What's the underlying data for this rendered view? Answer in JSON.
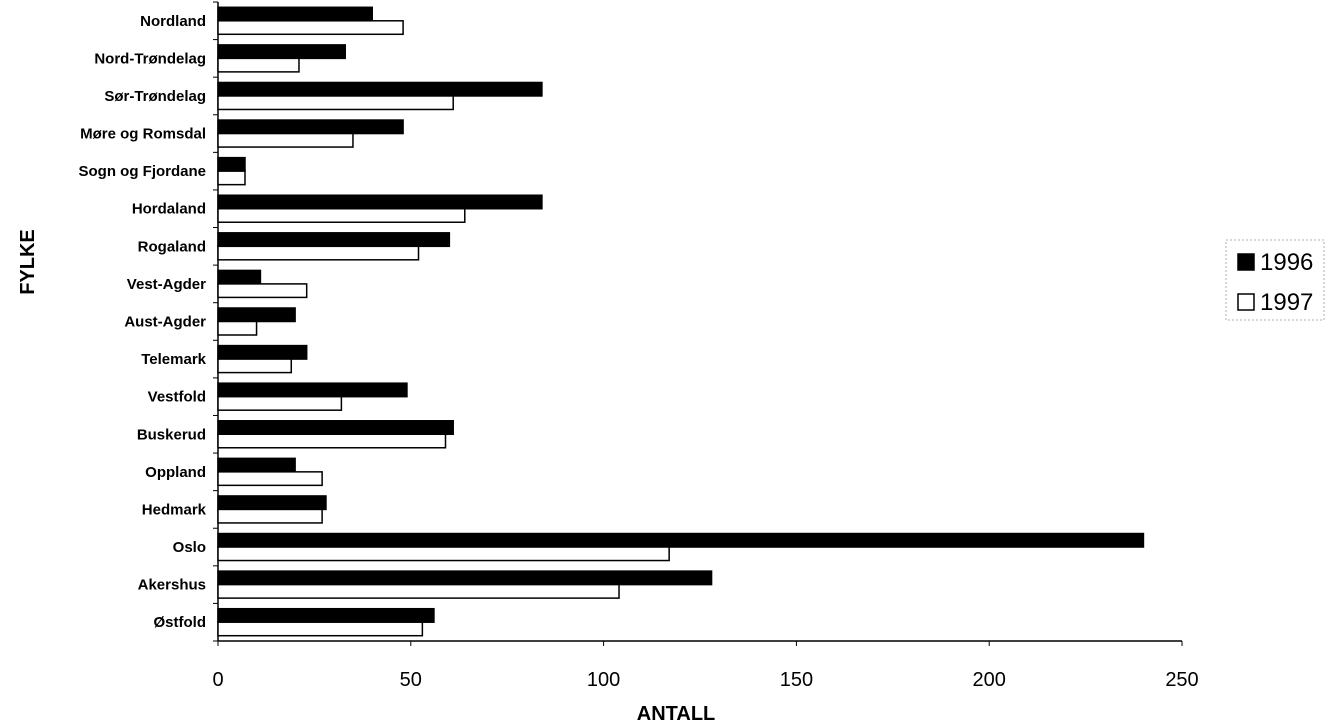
{
  "chart_data": {
    "type": "bar",
    "orientation": "horizontal",
    "categories": [
      "Nordland",
      "Nord-Trøndelag",
      "Sør-Trøndelag",
      "Møre og Romsdal",
      "Sogn og Fjordane",
      "Hordaland",
      "Rogaland",
      "Vest-Agder",
      "Aust-Agder",
      "Telemark",
      "Vestfold",
      "Buskerud",
      "Oppland",
      "Hedmark",
      "Oslo",
      "Akershus",
      "Østfold"
    ],
    "series": [
      {
        "name": "1996",
        "color": "#000000",
        "values": [
          40,
          33,
          84,
          48,
          7,
          84,
          60,
          11,
          20,
          23,
          49,
          61,
          20,
          28,
          240,
          128,
          56
        ]
      },
      {
        "name": "1997",
        "color": "#ffffff",
        "values": [
          48,
          21,
          61,
          35,
          7,
          64,
          52,
          23,
          10,
          19,
          32,
          59,
          27,
          27,
          117,
          104,
          53
        ]
      }
    ],
    "xlabel": "ANTALL",
    "ylabel": "FYLKE",
    "xlim": [
      0,
      250
    ],
    "xticks": [
      "0",
      "50",
      "100",
      "150",
      "200",
      "250"
    ],
    "grid": false,
    "legend_position": "right"
  }
}
